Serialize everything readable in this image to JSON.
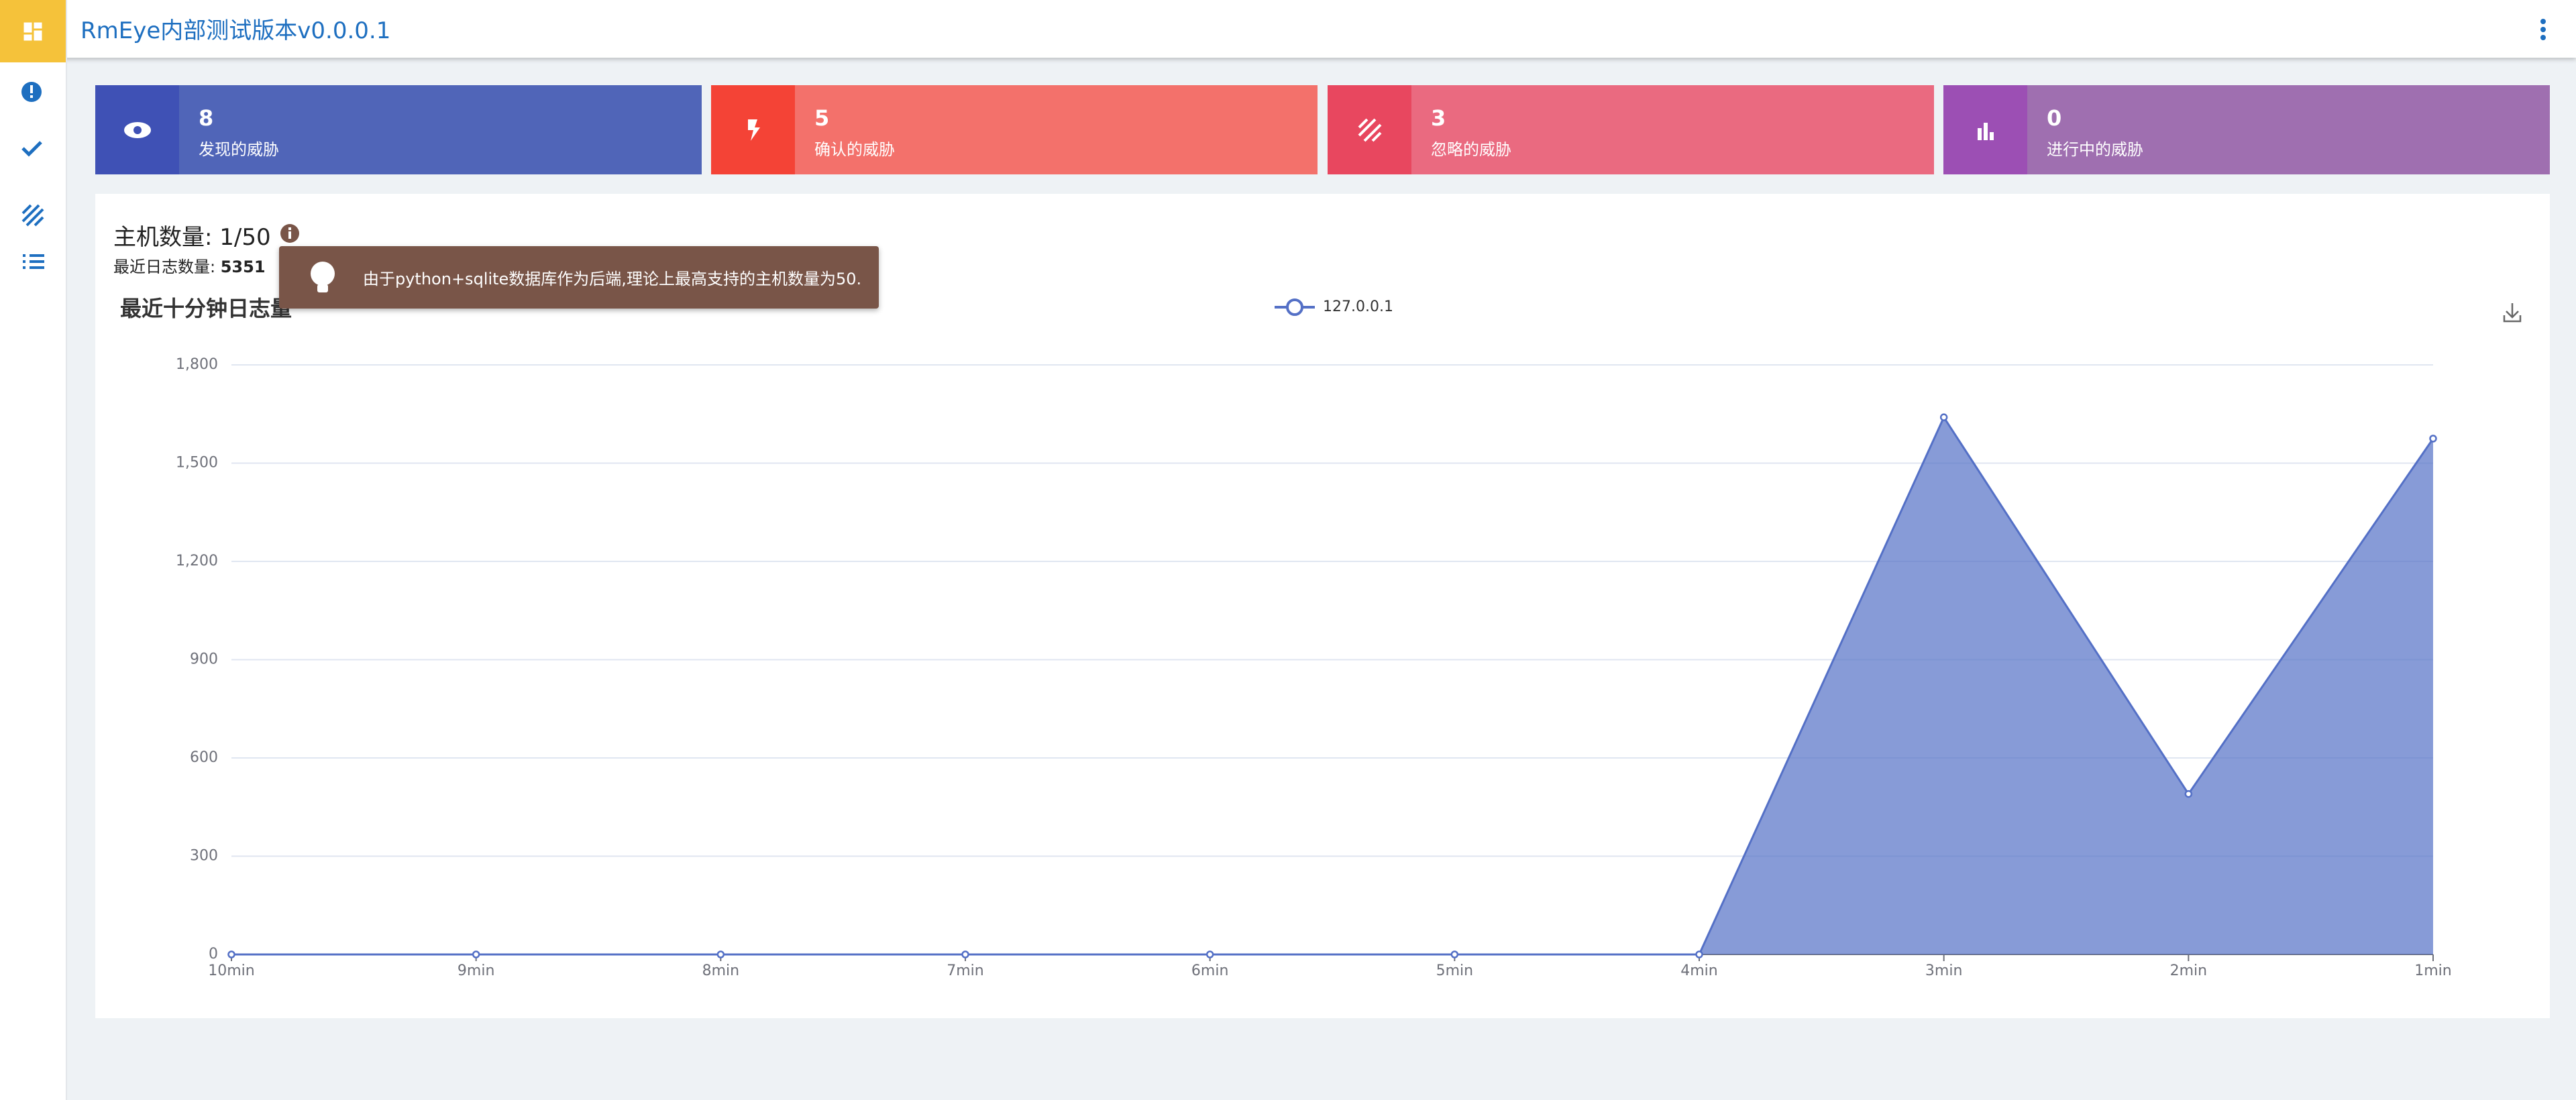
{
  "header": {
    "title": "RmEye内部测试版本v0.0.0.1"
  },
  "cards": [
    {
      "value": 8,
      "label": "发现的威胁"
    },
    {
      "value": 5,
      "label": "确认的威胁"
    },
    {
      "value": 3,
      "label": "忽略的威胁"
    },
    {
      "value": 0,
      "label": "进行中的威胁"
    }
  ],
  "panel": {
    "host_count": "主机数量: 1/50",
    "log_count_label": "最近日志数量:",
    "log_count": 5351,
    "tooltip": "由于python+sqlite数据库作为后端,理论上最高支持的主机数量为50."
  },
  "chart_data": {
    "type": "area",
    "title": "最近十分钟日志量",
    "categories": [
      "10min",
      "9min",
      "8min",
      "7min",
      "6min",
      "5min",
      "4min",
      "3min",
      "2min",
      "1min"
    ],
    "series": [
      {
        "name": "127.0.0.1",
        "color": "#5470c6",
        "values": [
          0,
          0,
          0,
          0,
          0,
          0,
          0,
          1640,
          490,
          1575
        ]
      }
    ],
    "ylim": [
      0,
      1800
    ],
    "yticks": [
      0,
      300,
      600,
      900,
      {
        "value": 1200,
        "label": "1,200"
      },
      {
        "value": 1500,
        "label": "1,500"
      },
      {
        "value": 1800,
        "label": "1,800"
      }
    ],
    "grid": true
  }
}
